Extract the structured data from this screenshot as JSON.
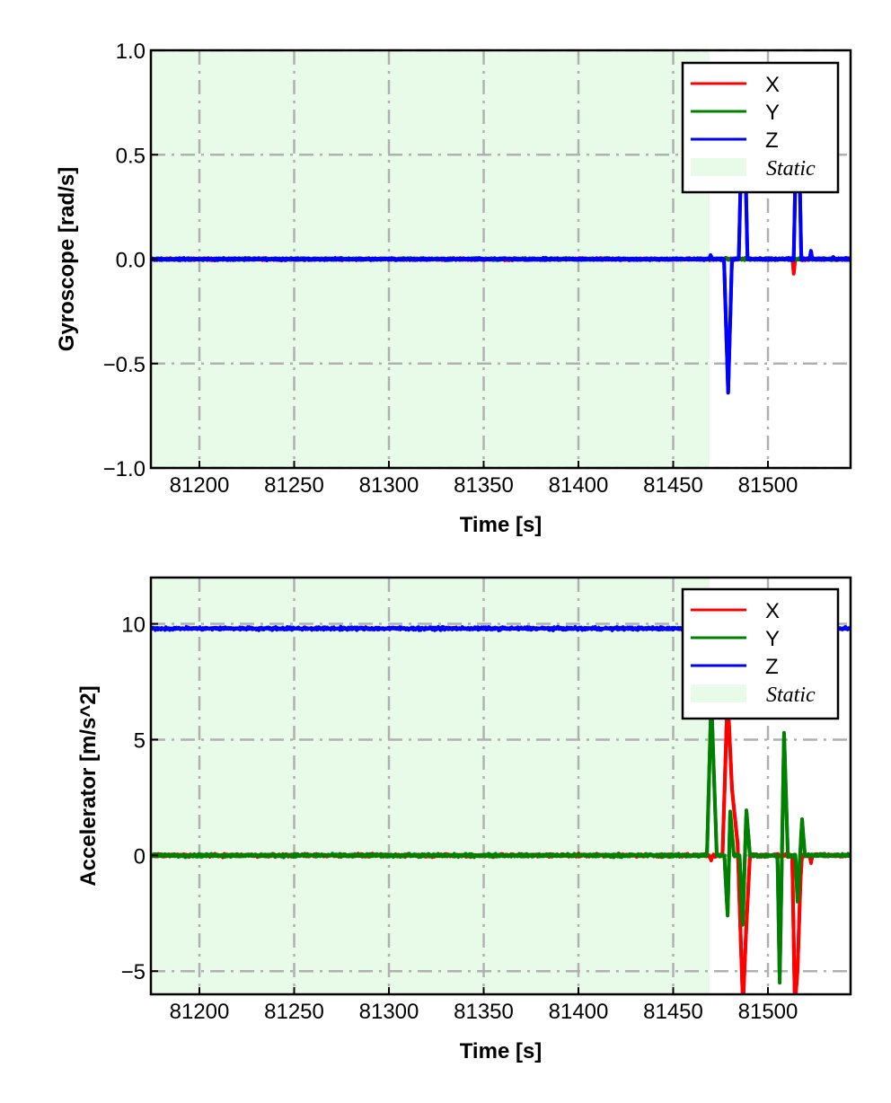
{
  "chart_data": [
    {
      "type": "line",
      "id": "gyro",
      "xlabel": "Time [s]",
      "ylabel": "Gyroscope [rad/s]",
      "xlim": [
        81174.4,
        81543.6
      ],
      "ylim": [
        -1.0,
        1.0
      ],
      "xticks": [
        81200,
        81250,
        81300,
        81350,
        81400,
        81450,
        81500
      ],
      "xtick_labels": [
        "81200",
        "81250",
        "81300",
        "81350",
        "81400",
        "81450",
        "81500"
      ],
      "yticks": [
        1.0,
        0.5,
        0.0,
        -0.5,
        -1.0
      ],
      "ytick_labels": [
        "1.0",
        "0.5",
        "0.0",
        "−0.5",
        "−1.0"
      ],
      "grid": true,
      "legend_placement": "top-right",
      "static_region": {
        "label": "Static",
        "x": [
          81174.4,
          81469.2
        ],
        "color": "#e8fbe8"
      },
      "noise": 0.004,
      "series": [
        {
          "name": "X",
          "color": "#ff0000",
          "points": [
            [
              81174.4,
              0
            ],
            [
              81513.0,
              0
            ],
            [
              81513.6,
              -0.07
            ],
            [
              81514.3,
              0
            ],
            [
              81543.6,
              0
            ]
          ]
        },
        {
          "name": "Y",
          "color": "#008000",
          "points": [
            [
              81174.4,
              0
            ],
            [
              81543.6,
              0
            ]
          ]
        },
        {
          "name": "Z",
          "color": "#0000ff",
          "points": [
            [
              81174.4,
              0
            ],
            [
              81469.0,
              0
            ],
            [
              81469.7,
              0.02
            ],
            [
              81470.5,
              0
            ],
            [
              81476.8,
              0
            ],
            [
              81479.0,
              -0.64
            ],
            [
              81481.0,
              0
            ],
            [
              81484.6,
              0
            ],
            [
              81487.0,
              0.92
            ],
            [
              81489.2,
              0
            ],
            [
              81513.6,
              0
            ],
            [
              81515.6,
              0.92
            ],
            [
              81517.6,
              0
            ],
            [
              81522.0,
              0
            ],
            [
              81522.7,
              0.04
            ],
            [
              81523.4,
              0
            ],
            [
              81534.0,
              0
            ],
            [
              81534.6,
              0.01
            ],
            [
              81535.2,
              0
            ],
            [
              81543.6,
              0
            ]
          ]
        }
      ]
    },
    {
      "type": "line",
      "id": "accel",
      "xlabel": "Time [s]",
      "ylabel": "Accelerator [m/s^2]",
      "xlim": [
        81174.4,
        81543.6
      ],
      "ylim": [
        -6.0,
        12.0
      ],
      "xticks": [
        81200,
        81250,
        81300,
        81350,
        81400,
        81450,
        81500
      ],
      "xtick_labels": [
        "81200",
        "81250",
        "81300",
        "81350",
        "81400",
        "81450",
        "81500"
      ],
      "yticks": [
        10,
        5,
        0,
        -5
      ],
      "ytick_labels": [
        "10",
        "5",
        "0",
        "−5"
      ],
      "grid": true,
      "legend_placement": "top-right",
      "static_region": {
        "label": "Static",
        "x": [
          81174.4,
          81469.2
        ],
        "color": "#e8fbe8"
      },
      "noise": 0.05,
      "series": [
        {
          "name": "X",
          "color": "#ff0000",
          "points": [
            [
              81174.4,
              0
            ],
            [
              81469.0,
              0
            ],
            [
              81470.0,
              -0.2
            ],
            [
              81471.0,
              0
            ],
            [
              81476.0,
              0
            ],
            [
              81478.7,
              7.0
            ],
            [
              81481.0,
              2.9
            ],
            [
              81484.0,
              0.5
            ],
            [
              81486.8,
              -6.5
            ],
            [
              81488.6,
              -3.0
            ],
            [
              81490.5,
              0
            ],
            [
              81512.8,
              0
            ],
            [
              81514.2,
              -6.5
            ],
            [
              81515.6,
              -5.0
            ],
            [
              81517.2,
              -1.0
            ],
            [
              81518.0,
              0
            ],
            [
              81522.0,
              0
            ],
            [
              81522.7,
              -0.3
            ],
            [
              81523.5,
              0
            ],
            [
              81543.6,
              0
            ]
          ]
        },
        {
          "name": "Y",
          "color": "#008000",
          "points": [
            [
              81174.4,
              0
            ],
            [
              81467.8,
              0
            ],
            [
              81470.1,
              6.8
            ],
            [
              81473.0,
              0
            ],
            [
              81477.0,
              0
            ],
            [
              81478.7,
              -2.6
            ],
            [
              81480.1,
              1.9
            ],
            [
              81482.0,
              0
            ],
            [
              81485.0,
              0
            ],
            [
              81486.7,
              -3.0
            ],
            [
              81488.6,
              1.95
            ],
            [
              81490.5,
              0
            ],
            [
              81505.0,
              0
            ],
            [
              81506.2,
              -5.5
            ],
            [
              81508.5,
              5.3
            ],
            [
              81510.5,
              0
            ],
            [
              81514.5,
              0
            ],
            [
              81515.6,
              -2.0
            ],
            [
              81518.0,
              1.55
            ],
            [
              81519.5,
              0
            ],
            [
              81543.6,
              0
            ]
          ]
        },
        {
          "name": "Z",
          "color": "#0000ff",
          "points": [
            [
              81174.4,
              9.8
            ],
            [
              81543.6,
              9.8
            ]
          ]
        }
      ]
    }
  ]
}
